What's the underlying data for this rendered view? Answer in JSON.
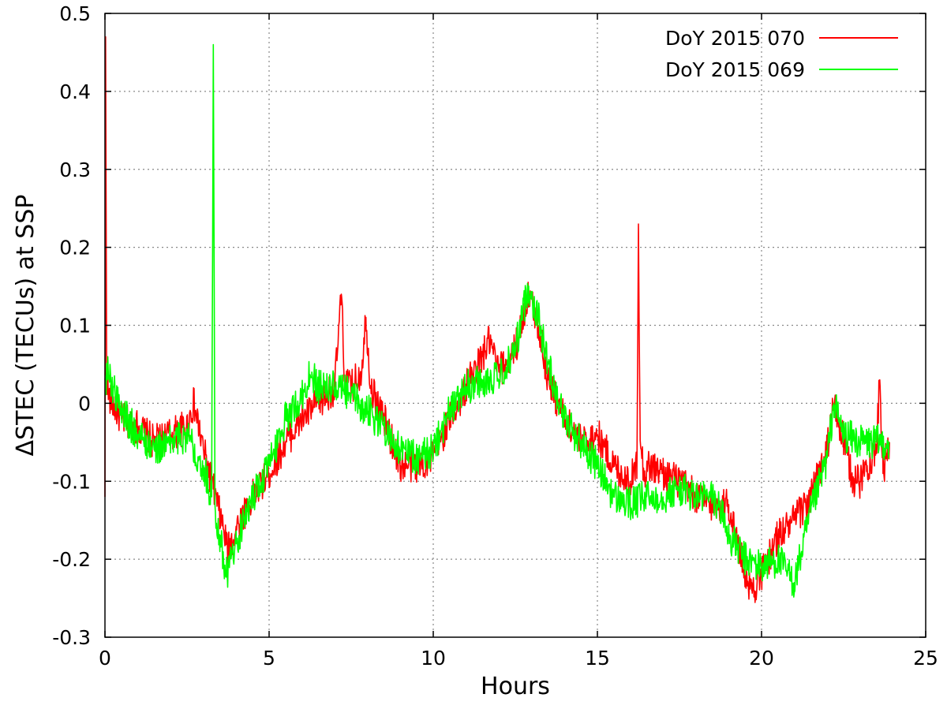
{
  "chart_data": {
    "type": "line",
    "xlabel": "Hours",
    "ylabel": "ΔSTEC (TECUs) at SSP",
    "xlim": [
      0,
      25
    ],
    "ylim": [
      -0.3,
      0.5
    ],
    "xticks": [
      0,
      5,
      10,
      15,
      20,
      25
    ],
    "yticks": [
      -0.3,
      -0.2,
      -0.1,
      0,
      0.1,
      0.2,
      0.3,
      0.4,
      0.5
    ],
    "ytick_labels": [
      "-0.3",
      "-0.2",
      "-0.1",
      "0",
      "0.1",
      "0.2",
      "0.3",
      "0.4",
      "0.5"
    ],
    "grid": true,
    "legend_position": "top-right",
    "series": [
      {
        "name": "DoY 2015 070",
        "color": "#ff0000",
        "x": [
          0,
          0.02,
          0.05,
          0.07,
          0.1,
          0.5,
          1.0,
          1.5,
          2.0,
          2.5,
          2.7,
          3.0,
          3.3,
          3.6,
          3.75,
          4.0,
          4.5,
          5.0,
          5.5,
          6.0,
          6.5,
          7.0,
          7.2,
          7.3,
          7.5,
          7.8,
          7.95,
          8.1,
          8.5,
          9.0,
          9.5,
          10.0,
          10.5,
          11.0,
          11.5,
          11.7,
          12.0,
          12.5,
          12.9,
          13.2,
          13.5,
          14.0,
          14.5,
          15.0,
          15.5,
          16.0,
          16.2,
          16.25,
          16.3,
          16.4,
          16.6,
          17.0,
          17.5,
          18.0,
          18.5,
          19.0,
          19.5,
          19.7,
          20.0,
          20.5,
          21.0,
          21.5,
          22.0,
          22.2,
          22.5,
          22.8,
          23.0,
          23.2,
          23.5,
          23.6,
          23.7,
          23.9
        ],
        "y": [
          -0.12,
          0.47,
          0.05,
          0.03,
          0.01,
          -0.02,
          -0.03,
          -0.05,
          -0.04,
          -0.03,
          0.0,
          -0.06,
          -0.11,
          -0.16,
          -0.19,
          -0.16,
          -0.12,
          -0.09,
          -0.05,
          -0.02,
          0.0,
          0.02,
          0.14,
          0.03,
          0.02,
          0.04,
          0.11,
          0.02,
          -0.02,
          -0.08,
          -0.08,
          -0.07,
          -0.02,
          0.02,
          0.06,
          0.08,
          0.04,
          0.07,
          0.14,
          0.1,
          0.03,
          -0.02,
          -0.05,
          -0.04,
          -0.08,
          -0.1,
          -0.08,
          0.23,
          -0.03,
          -0.09,
          -0.08,
          -0.09,
          -0.1,
          -0.12,
          -0.13,
          -0.13,
          -0.22,
          -0.24,
          -0.22,
          -0.17,
          -0.15,
          -0.12,
          -0.06,
          0.0,
          -0.05,
          -0.1,
          -0.1,
          -0.08,
          -0.06,
          0.03,
          -0.09,
          -0.05
        ]
      },
      {
        "name": "DoY 2015 069",
        "color": "#00ff00",
        "x": [
          0,
          0.1,
          0.5,
          1.0,
          1.5,
          2.0,
          2.5,
          3.0,
          3.25,
          3.3,
          3.35,
          3.5,
          3.7,
          4.0,
          4.5,
          5.0,
          5.5,
          6.0,
          6.3,
          6.5,
          7.0,
          7.5,
          8.0,
          8.5,
          9.0,
          9.5,
          10.0,
          10.5,
          11.0,
          11.5,
          12.0,
          12.5,
          12.9,
          13.2,
          13.5,
          14.0,
          14.5,
          15.0,
          15.5,
          16.0,
          16.5,
          17.0,
          17.5,
          18.0,
          18.5,
          18.8,
          19.0,
          19.5,
          20.0,
          20.5,
          21.0,
          21.5,
          22.0,
          22.2,
          22.5,
          23.0,
          23.5,
          23.9
        ],
        "y": [
          0.03,
          0.04,
          -0.01,
          -0.04,
          -0.06,
          -0.05,
          -0.04,
          -0.08,
          -0.12,
          0.46,
          -0.13,
          -0.17,
          -0.22,
          -0.18,
          -0.12,
          -0.08,
          -0.02,
          0.01,
          0.04,
          0.02,
          0.02,
          0.01,
          -0.01,
          -0.03,
          -0.06,
          -0.07,
          -0.06,
          -0.01,
          0.02,
          0.03,
          0.03,
          0.07,
          0.15,
          0.11,
          0.05,
          -0.02,
          -0.05,
          -0.08,
          -0.12,
          -0.13,
          -0.12,
          -0.12,
          -0.11,
          -0.12,
          -0.12,
          -0.14,
          -0.17,
          -0.2,
          -0.21,
          -0.2,
          -0.23,
          -0.14,
          -0.07,
          0.0,
          -0.04,
          -0.05,
          -0.05,
          -0.05
        ]
      }
    ]
  }
}
